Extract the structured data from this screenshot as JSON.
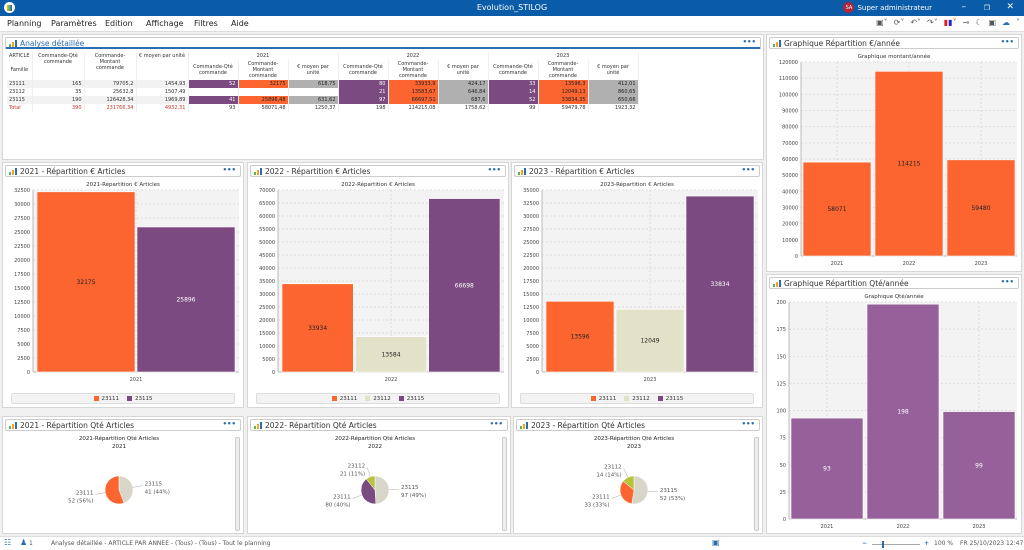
{
  "window": {
    "title": "Evolution_STILOG",
    "user_initials": "SA",
    "user_name": "Super administrateur"
  },
  "menu": [
    "Planning",
    "Paramètres",
    "Edition",
    "Affichage",
    "Filtres",
    "Aide"
  ],
  "colors": {
    "c23111": "#fd6530",
    "c23112": "#e2e2c8",
    "c23115": "#7a4a80",
    "qty_bar": "#96619a",
    "accent": "#0a5ba8"
  },
  "analysis": {
    "title": "Analyse détaillée",
    "header_col1": [
      "ARTICLE",
      "Famille"
    ],
    "header_totals": [
      "Commande-Qté commande",
      "Commande-Montant commande",
      "€ moyen par unité"
    ],
    "years": [
      "2021",
      "2022",
      "2023"
    ],
    "sub_headers": [
      "Commande-Qté commande",
      "Commande-Montant commande",
      "€ moyen par unité"
    ],
    "rows": [
      {
        "article": "23111",
        "qty": "165",
        "amount": "79705,2",
        "avg": "1454,93",
        "y": [
          [
            "52",
            "32175",
            "618,75"
          ],
          [
            "80",
            "33933,9",
            "424,17"
          ],
          [
            "33",
            "13596,3",
            "412,01"
          ]
        ]
      },
      {
        "article": "23112",
        "qty": "35",
        "amount": "25632,8",
        "avg": "1507,49",
        "y": [
          [
            "",
            "",
            ""
          ],
          [
            "21",
            "13583,67",
            "646,84"
          ],
          [
            "14",
            "12049,13",
            "860,65"
          ]
        ]
      },
      {
        "article": "23115",
        "qty": "190",
        "amount": "126428,34",
        "avg": "1969,89",
        "y": [
          [
            "41",
            "25896,48",
            "631,62"
          ],
          [
            "97",
            "66697,51",
            "687,6"
          ],
          [
            "52",
            "33834,35",
            "650,66"
          ]
        ]
      }
    ],
    "total": {
      "label": "Total",
      "qty": "390",
      "amount": "231766,34",
      "avg": "4932,31",
      "y": [
        [
          "93",
          "58071,48",
          "1250,37"
        ],
        [
          "198",
          "114215,08",
          "1758,62"
        ],
        [
          "99",
          "59479,78",
          "1923,32"
        ]
      ]
    }
  },
  "panels": {
    "montant_annee": "Graphique Répartition €/année",
    "qte_annee": "Graphique Répartition Qté/année",
    "r2021": "2021 - Répartition € Articles",
    "r2022": "2022 - Répartition € Articles",
    "r2023": "2023 - Répartition € Articles",
    "q2021": "2021 - Répartition Qté Articles",
    "q2022": "2022- Répartition Qté Articles",
    "q2023": "2023 - Répartition Qté Articles"
  },
  "chart_data": [
    {
      "id": "montant",
      "type": "bar",
      "title": "Graphique montant/année",
      "categories": [
        "2021",
        "2022",
        "2023"
      ],
      "values": [
        58071,
        114215,
        59480
      ],
      "ylim": [
        0,
        120000
      ],
      "yticks": [
        0,
        10000,
        20000,
        30000,
        40000,
        50000,
        60000,
        70000,
        80000,
        90000,
        100000,
        110000,
        120000
      ],
      "grid": true
    },
    {
      "id": "qte",
      "type": "bar",
      "title": "Graphique Qté/année",
      "categories": [
        "2021",
        "2022",
        "2023"
      ],
      "values": [
        93,
        198,
        99
      ],
      "ylim": [
        0,
        200
      ],
      "yticks": [
        0,
        25,
        50,
        75,
        100,
        125,
        150,
        175,
        200
      ],
      "grid": true
    },
    {
      "id": "r2021",
      "type": "bar",
      "title": "2021-Répartition € Articles",
      "categories": [
        "2021"
      ],
      "series": [
        {
          "name": "23111",
          "values": [
            32175
          ]
        },
        {
          "name": "23115",
          "values": [
            25896
          ]
        }
      ],
      "ylim": [
        0,
        32500
      ],
      "yticks": [
        0,
        2500,
        5000,
        7500,
        10000,
        12500,
        15000,
        17500,
        20000,
        22500,
        25000,
        27500,
        30000,
        32500
      ],
      "legend": "bottom"
    },
    {
      "id": "r2022",
      "type": "bar",
      "title": "2022-Répartition € Articles",
      "categories": [
        "2022"
      ],
      "series": [
        {
          "name": "23111",
          "values": [
            33934
          ]
        },
        {
          "name": "23112",
          "values": [
            13584
          ]
        },
        {
          "name": "23115",
          "values": [
            66698
          ]
        }
      ],
      "ylim": [
        0,
        70000
      ],
      "yticks": [
        0,
        5000,
        10000,
        15000,
        20000,
        25000,
        30000,
        35000,
        40000,
        45000,
        50000,
        55000,
        60000,
        65000,
        70000
      ],
      "legend": "bottom"
    },
    {
      "id": "r2023",
      "type": "bar",
      "title": "2023-Répartition € Articles",
      "categories": [
        "2023"
      ],
      "series": [
        {
          "name": "23111",
          "values": [
            13596
          ]
        },
        {
          "name": "23112",
          "values": [
            12049
          ]
        },
        {
          "name": "23115",
          "values": [
            33834
          ]
        }
      ],
      "ylim": [
        0,
        35000
      ],
      "yticks": [
        0,
        2500,
        5000,
        7500,
        10000,
        12500,
        15000,
        17500,
        20000,
        22500,
        25000,
        27500,
        30000,
        32500,
        35000
      ],
      "legend": "bottom"
    },
    {
      "id": "p2021",
      "type": "pie",
      "title": "2021-Répartition Qté  Articles",
      "subtitle": "2021",
      "slices": [
        {
          "name": "23115",
          "value": 41,
          "pct": "44%"
        },
        {
          "name": "23111",
          "value": 52,
          "pct": "56%"
        }
      ]
    },
    {
      "id": "p2022",
      "type": "pie",
      "title": "2022-Répartition Qté  Articles",
      "subtitle": "2022",
      "slices": [
        {
          "name": "23115",
          "value": 97,
          "pct": "49%"
        },
        {
          "name": "23111",
          "value": 80,
          "pct": "40%"
        },
        {
          "name": "23112",
          "value": 21,
          "pct": "11%"
        }
      ]
    },
    {
      "id": "p2023",
      "type": "pie",
      "title": "2023-Répartition Qté  Articles",
      "subtitle": "2023",
      "slices": [
        {
          "name": "23115",
          "value": 52,
          "pct": "53%"
        },
        {
          "name": "23111",
          "value": 33,
          "pct": "33%"
        },
        {
          "name": "23112",
          "value": 14,
          "pct": "14%"
        }
      ]
    }
  ],
  "status": {
    "users": "1",
    "path": "Analyse détaillée - ARTICLE PAR ANNEE - (Tous) - (Tous) - Tout le planning",
    "zoom": "100 %",
    "datetime": "FR 25/10/2023 12:47"
  }
}
